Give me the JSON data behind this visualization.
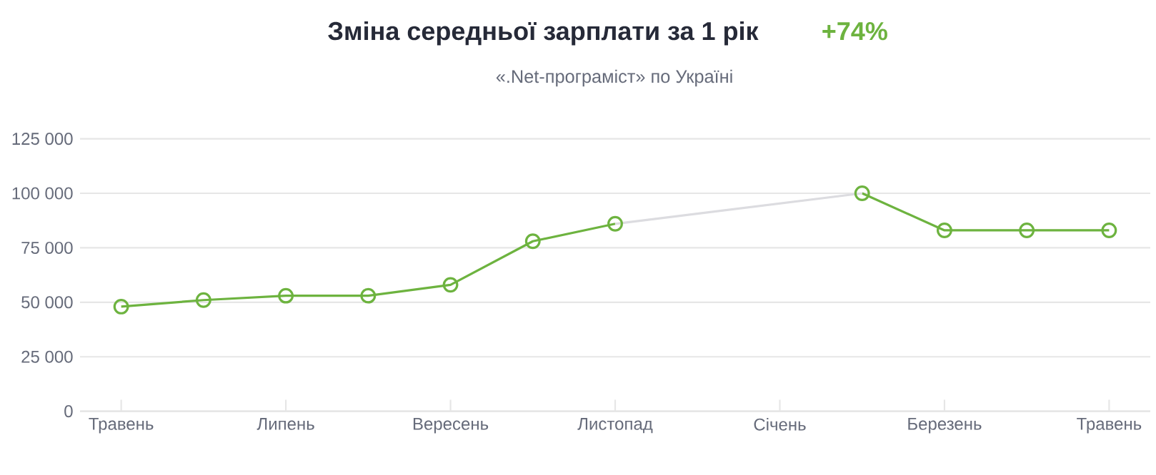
{
  "chart_data": {
    "type": "line",
    "title": "Зміна середньої зарплати за 1 рік",
    "subtitle": "«.Net-програміст» по Україні",
    "annotations": [
      "+74%"
    ],
    "categories": [
      "Травень",
      null,
      "Липень",
      null,
      "Вересень",
      null,
      "Листопад",
      null,
      "Січень",
      null,
      "Березень",
      null,
      "Травень"
    ],
    "series": [
      {
        "color": "#6db33f",
        "marker": "circle",
        "values": [
          48000,
          51000,
          53000,
          53000,
          58000,
          78000,
          86000,
          null,
          null,
          100000,
          83000,
          83000,
          83000
        ]
      },
      {
        "color": "#dcdce0",
        "marker": "none",
        "values": [
          null,
          null,
          null,
          null,
          null,
          null,
          86000,
          null,
          null,
          100000,
          null,
          null,
          null
        ]
      }
    ],
    "ylim": [
      0,
      125000
    ],
    "yticks": [
      {
        "value": 0,
        "label": "0"
      },
      {
        "value": 25000,
        "label": "25 000"
      },
      {
        "value": 50000,
        "label": "50 000"
      },
      {
        "value": 75000,
        "label": "75 000"
      },
      {
        "value": 100000,
        "label": "100 000"
      },
      {
        "value": 125000,
        "label": "125 000"
      }
    ],
    "grid": "y"
  }
}
